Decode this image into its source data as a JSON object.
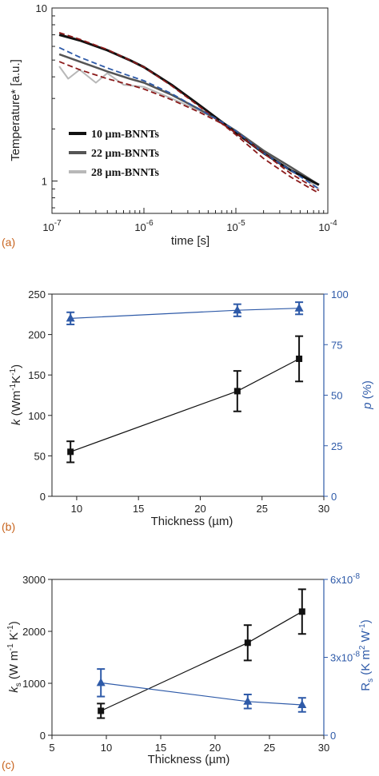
{
  "colors": {
    "black": "#111111",
    "blue": "#2e5aa8",
    "dark_red": "#8b1a1a",
    "panel_label": "#c8641e",
    "gray_dark": "#555555",
    "gray_light": "#b8b8b8"
  },
  "chart_data": [
    {
      "panel": "(a)",
      "type": "line",
      "xscale": "log",
      "yscale": "log",
      "xlabel": "time [s]",
      "ylabel": "Temperature* [a.u.]",
      "xlim": [
        1e-07,
        0.0001
      ],
      "ylim": [
        0.65,
        10
      ],
      "x_tick_labels": [
        "10",
        "10",
        "10",
        "10"
      ],
      "x_tick_exponents": [
        "-7",
        "-6",
        "-5",
        "-4"
      ],
      "y_tick_labels": [
        "10",
        "1"
      ],
      "legend_position": "lower-left",
      "series": [
        {
          "name": "10 µm-BNNTs",
          "color": "#111111",
          "style": "solid",
          "x": [
            1.2e-07,
            2e-07,
            4e-07,
            7e-07,
            1e-06,
            2e-06,
            4e-06,
            7e-06,
            1e-05,
            2e-05,
            4e-05,
            8e-05
          ],
          "y": [
            7.0,
            6.5,
            5.7,
            5.0,
            4.55,
            3.6,
            2.75,
            2.2,
            1.9,
            1.45,
            1.15,
            0.95
          ]
        },
        {
          "name": "22 µm-BNNTs",
          "color": "#555555",
          "style": "solid",
          "x": [
            1.2e-07,
            2e-07,
            4e-07,
            7e-07,
            1e-06,
            2e-06,
            4e-06,
            7e-06,
            1e-05,
            2e-05,
            4e-05,
            8e-05
          ],
          "y": [
            5.4,
            4.9,
            4.3,
            3.9,
            3.7,
            3.15,
            2.6,
            2.2,
            1.95,
            1.5,
            1.2,
            0.95
          ]
        },
        {
          "name": "28 µm-BNNTs",
          "color": "#b8b8b8",
          "style": "solid",
          "x": [
            1.2e-07,
            1.5e-07,
            2e-07,
            3e-07,
            4e-07,
            6e-07,
            1e-06,
            2e-06,
            4e-06,
            7e-06,
            1e-05,
            2e-05,
            4e-05,
            8e-05
          ],
          "y": [
            4.6,
            3.9,
            4.4,
            3.7,
            4.2,
            3.6,
            3.5,
            3.0,
            2.55,
            2.2,
            1.95,
            1.5,
            1.2,
            0.9
          ]
        },
        {
          "color": "#8b1a1a",
          "style": "dashed",
          "x": [
            1.2e-07,
            2e-07,
            4e-07,
            7e-07,
            1e-06,
            2e-06,
            4e-06,
            7e-06,
            1e-05,
            2e-05,
            4e-05,
            8e-05
          ],
          "y": [
            7.2,
            6.6,
            5.75,
            5.0,
            4.55,
            3.55,
            2.7,
            2.15,
            1.85,
            1.35,
            1.05,
            0.85
          ]
        },
        {
          "color": "#2e5aa8",
          "style": "dashed",
          "x": [
            1.2e-07,
            2e-07,
            4e-07,
            7e-07,
            1e-06,
            2e-06,
            4e-06,
            7e-06,
            1e-05,
            2e-05,
            4e-05,
            8e-05
          ],
          "y": [
            5.9,
            5.2,
            4.5,
            4.05,
            3.8,
            3.2,
            2.6,
            2.2,
            1.95,
            1.45,
            1.15,
            0.9
          ]
        },
        {
          "color": "#8b1a1a",
          "style": "dashed",
          "x": [
            1.2e-07,
            2e-07,
            4e-07,
            7e-07,
            1e-06,
            2e-06,
            4e-06,
            7e-06,
            1e-05,
            2e-05,
            4e-05,
            8e-05
          ],
          "y": [
            4.9,
            4.4,
            3.9,
            3.6,
            3.4,
            2.95,
            2.5,
            2.15,
            1.9,
            1.45,
            1.1,
            0.88
          ]
        }
      ]
    },
    {
      "panel": "(b)",
      "type": "line",
      "xlabel": "Thickness (µm)",
      "ylabel_left_symbol": "k",
      "ylabel_left_unit": " (Wm",
      "ylabel_left_exp1": "-1",
      "ylabel_left_mid": "K",
      "ylabel_left_exp2": "-1",
      "ylabel_left_end": ")",
      "ylabel_right_symbol": "p",
      "ylabel_right_unit": " (%)",
      "xlim": [
        8,
        30
      ],
      "ylim_left": [
        0,
        250
      ],
      "ylim_right": [
        0,
        100
      ],
      "x_ticks": [
        10,
        15,
        20,
        25,
        30
      ],
      "y_ticks_left": [
        0,
        50,
        100,
        150,
        200,
        250
      ],
      "y_ticks_right": [
        0,
        25,
        50,
        75,
        100
      ],
      "series": [
        {
          "axis": "left",
          "color": "#111111",
          "marker": "square",
          "x": [
            9.5,
            23,
            28
          ],
          "y": [
            55,
            130,
            170
          ],
          "yerr": [
            13,
            25,
            28
          ]
        },
        {
          "axis": "right",
          "color": "#2e5aa8",
          "marker": "triangle",
          "x": [
            9.5,
            23,
            28
          ],
          "y": [
            88,
            92,
            93
          ],
          "yerr": [
            3,
            3,
            3
          ]
        }
      ]
    },
    {
      "panel": "(c)",
      "type": "line",
      "xlabel": "Thickness (µm)",
      "ylabel_left": "k",
      "ylabel_left_sub": "s",
      "ylabel_left_unit": " (W m",
      "ylabel_left_exp1": "-1",
      "ylabel_left_mid": " K",
      "ylabel_left_exp2": "-1",
      "ylabel_left_end": ")",
      "ylabel_right": "R",
      "ylabel_right_sub": "s",
      "ylabel_right_unit": " (K m",
      "ylabel_right_exp1": "2",
      "ylabel_right_mid": " W",
      "ylabel_right_exp2": "-1",
      "ylabel_right_end": ")",
      "xlim": [
        5,
        30
      ],
      "ylim_left": [
        0,
        3000
      ],
      "ylim_right": [
        0,
        6e-08
      ],
      "x_ticks": [
        5,
        10,
        15,
        20,
        25,
        30
      ],
      "y_ticks_left": [
        0,
        1000,
        2000,
        3000
      ],
      "y_tick_labels_right": [
        "0",
        "3x10",
        "6x10"
      ],
      "y_tick_exponents_right": [
        "",
        "-8",
        "-8"
      ],
      "series": [
        {
          "axis": "left",
          "color": "#111111",
          "marker": "square",
          "x": [
            9.5,
            23,
            28
          ],
          "y": [
            470,
            1780,
            2380
          ],
          "yerr": [
            140,
            340,
            430
          ]
        },
        {
          "axis": "right",
          "color": "#2e5aa8",
          "marker": "triangle",
          "x": [
            9.5,
            23,
            28
          ],
          "y": [
            2.02e-08,
            1.3e-08,
            1.17e-08
          ],
          "yerr": [
            5.3e-09,
            2.7e-09,
            2.7e-09
          ]
        }
      ]
    }
  ]
}
